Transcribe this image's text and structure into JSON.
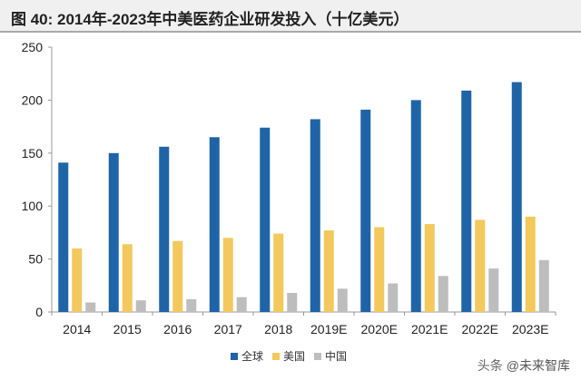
{
  "title": "图  40:  2014年-2023年中美医药企业研发投入（十亿美元）",
  "watermark": {
    "logo": "头条",
    "text": "@未来智库"
  },
  "colors": {
    "global": "#1f64a6",
    "us": "#f3c85c",
    "china": "#bdbdbd"
  },
  "chart_data": {
    "type": "bar",
    "title": "图  40:  2014年-2023年中美医药企业研发投入（十亿美元）",
    "categories": [
      "2014",
      "2015",
      "2016",
      "2017",
      "2018",
      "2019E",
      "2020E",
      "2021E",
      "2022E",
      "2023E"
    ],
    "series": [
      {
        "name": "全球",
        "values": [
          141,
          150,
          156,
          165,
          174,
          182,
          191,
          200,
          209,
          217
        ]
      },
      {
        "name": "美国",
        "values": [
          60,
          64,
          67,
          70,
          74,
          77,
          80,
          83,
          87,
          90
        ]
      },
      {
        "name": "中国",
        "values": [
          9,
          11,
          12,
          14,
          18,
          22,
          27,
          34,
          41,
          49
        ]
      }
    ],
    "ylim": [
      0,
      250
    ],
    "yticks": [
      0,
      50,
      100,
      150,
      200,
      250
    ],
    "grid": false,
    "legend_position": "bottom"
  }
}
